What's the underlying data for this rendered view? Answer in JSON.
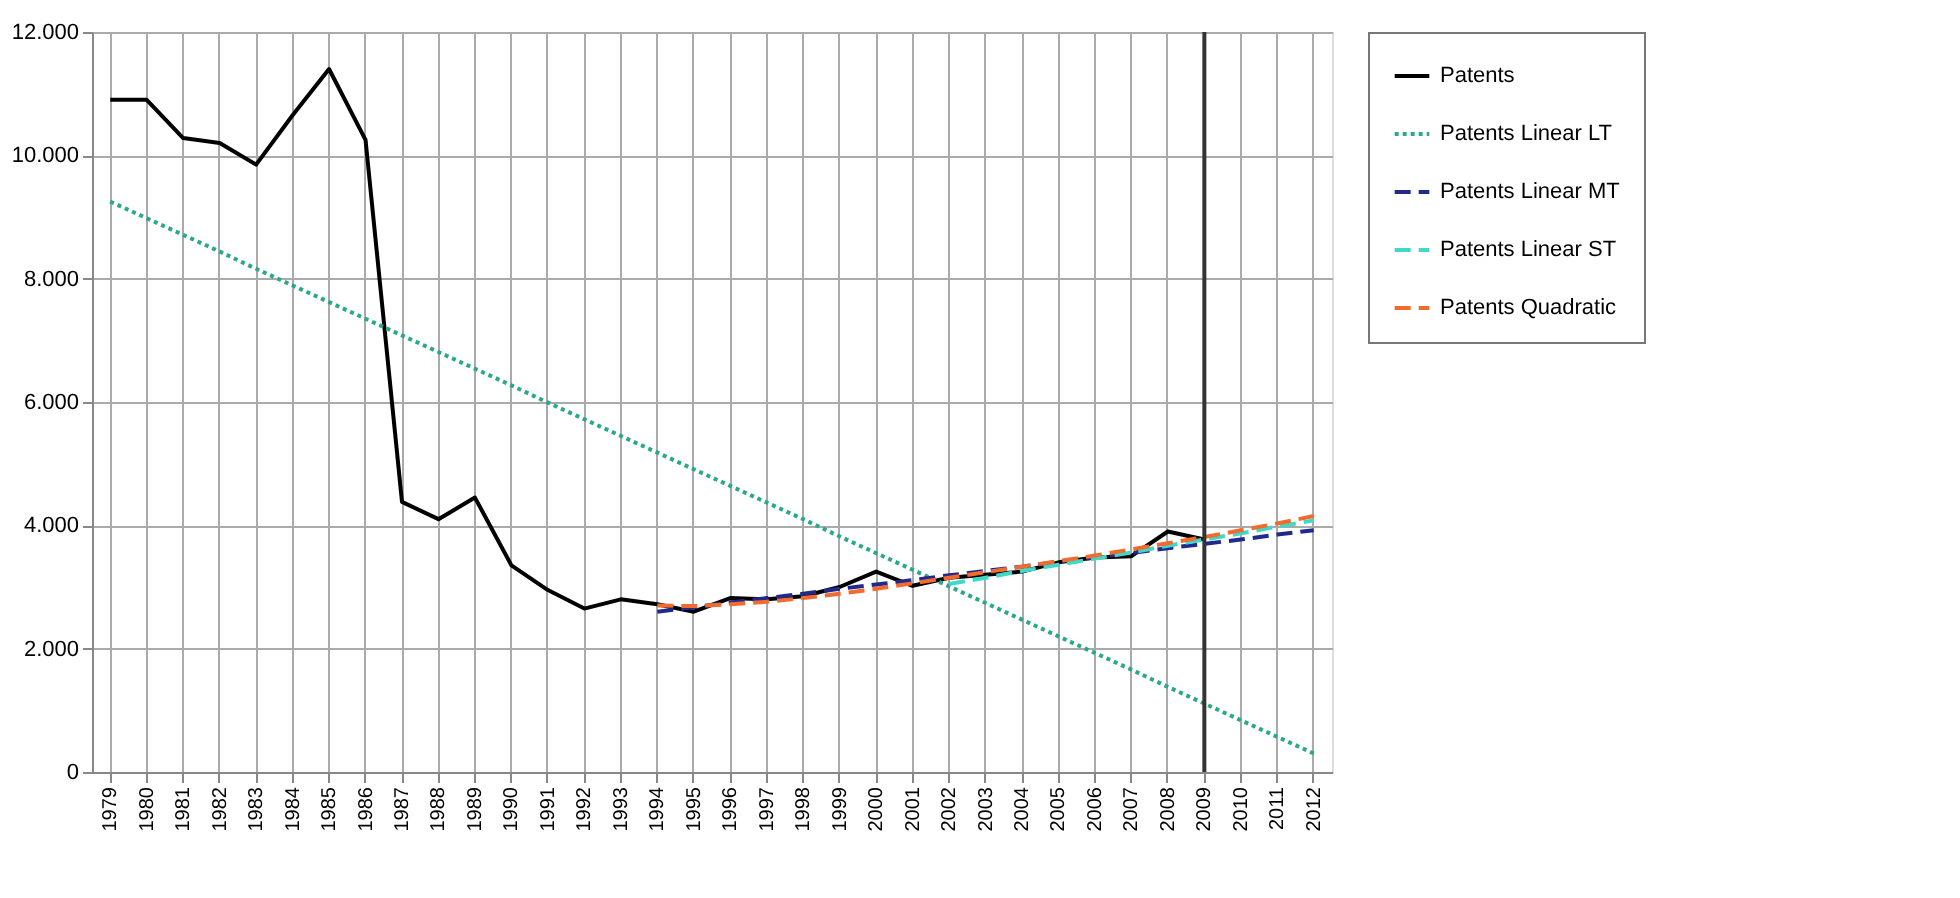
{
  "chart_data": {
    "type": "line",
    "categories": [
      "1979",
      "1980",
      "1981",
      "1982",
      "1983",
      "1984",
      "1985",
      "1986",
      "1987",
      "1988",
      "1989",
      "1990",
      "1991",
      "1992",
      "1993",
      "1994",
      "1995",
      "1996",
      "1997",
      "1998",
      "1999",
      "2000",
      "2001",
      "2002",
      "2003",
      "2004",
      "2005",
      "2006",
      "2007",
      "2008",
      "2009",
      "2010",
      "2011",
      "2012"
    ],
    "series": [
      {
        "name": "Patents",
        "color": "#000000",
        "line_style": "solid",
        "values": [
          10900,
          10900,
          10280,
          10200,
          9850,
          10650,
          11400,
          10250,
          4380,
          4100,
          4450,
          3350,
          2950,
          2650,
          2800,
          2720,
          2600,
          2820,
          2800,
          2850,
          3000,
          3250,
          3020,
          3150,
          3200,
          3250,
          3400,
          3480,
          3500,
          3900,
          3770,
          null,
          null,
          null
        ]
      },
      {
        "name": "Patents Linear LT",
        "color": "#2aa889",
        "line_style": "dotted",
        "values": [
          9250,
          8980,
          8710,
          8440,
          8160,
          7890,
          7620,
          7350,
          7080,
          6810,
          6540,
          6270,
          5990,
          5720,
          5450,
          5180,
          4910,
          4640,
          4370,
          4100,
          3820,
          3550,
          3280,
          3010,
          2740,
          2470,
          2200,
          1930,
          1660,
          1380,
          1110,
          840,
          570,
          300
        ]
      },
      {
        "name": "Patents Linear MT",
        "color": "#1f2a8a",
        "line_style": "dashed",
        "values": [
          null,
          null,
          null,
          null,
          null,
          null,
          null,
          null,
          null,
          null,
          null,
          null,
          null,
          null,
          null,
          2600,
          2670,
          2750,
          2820,
          2890,
          2970,
          3040,
          3110,
          3190,
          3260,
          3330,
          3410,
          3480,
          3550,
          3630,
          3700,
          3770,
          3850,
          3920
        ]
      },
      {
        "name": "Patents Linear ST",
        "color": "#3fd9c8",
        "line_style": "dashed",
        "values": [
          null,
          null,
          null,
          null,
          null,
          null,
          null,
          null,
          null,
          null,
          null,
          null,
          null,
          null,
          null,
          null,
          null,
          null,
          null,
          null,
          null,
          null,
          null,
          3050,
          3150,
          3260,
          3360,
          3460,
          3560,
          3670,
          3770,
          3870,
          3980,
          4080
        ]
      },
      {
        "name": "Patents Quadratic",
        "color": "#f26a2e",
        "line_style": "dashed",
        "values": [
          null,
          null,
          null,
          null,
          null,
          null,
          null,
          null,
          null,
          null,
          null,
          null,
          null,
          null,
          null,
          2700,
          2690,
          2720,
          2760,
          2820,
          2890,
          2970,
          3060,
          3150,
          3240,
          3330,
          3420,
          3510,
          3610,
          3710,
          3810,
          3920,
          4030,
          4150
        ]
      }
    ],
    "ylim": [
      0,
      12000
    ],
    "yticks": [
      0,
      {
        "value": 2000,
        "label": "2.000"
      },
      {
        "value": 4000,
        "label": "4.000"
      },
      {
        "value": 6000,
        "label": "6.000"
      },
      {
        "value": 8000,
        "label": "8.000"
      },
      {
        "value": 10000,
        "label": "10.000"
      },
      {
        "value": 12000,
        "label": "12.000"
      }
    ],
    "ref_lines": [
      {
        "axis": "x",
        "value": "2009",
        "color": "#333333"
      }
    ],
    "grid": true,
    "legend": "top right",
    "marker": "none"
  }
}
